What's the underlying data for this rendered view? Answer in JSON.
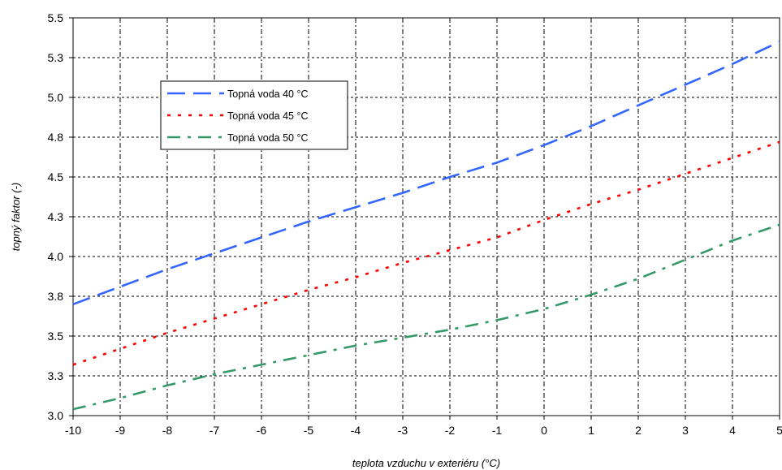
{
  "chart_data": {
    "type": "line",
    "title": "",
    "xlabel": "teplota vzduchu v exteriéru (°C)",
    "ylabel": "topný faktor (-)",
    "xlim": [
      -10,
      5
    ],
    "ylim": [
      3.0,
      5.5
    ],
    "x_ticks": [
      -10,
      -9,
      -8,
      -7,
      -6,
      -5,
      -4,
      -3,
      -2,
      -1,
      0,
      1,
      2,
      3,
      4,
      5
    ],
    "y_ticks": [
      3.0,
      3.25,
      3.5,
      3.75,
      4.0,
      4.25,
      4.5,
      4.75,
      5.0,
      5.25,
      5.5
    ],
    "y_tick_labels": [
      "3.0",
      "3.3",
      "3.5",
      "3.8",
      "4.0",
      "4.3",
      "4.5",
      "4.8",
      "5.0",
      "5.3",
      "5.5"
    ],
    "grid": true,
    "legend_position": "upper-left",
    "series": [
      {
        "name": "Topná voda 40 °C",
        "color": "#3366ff",
        "style": "dashed",
        "x": [
          -10,
          -9,
          -8,
          -7,
          -6,
          -5,
          -4,
          -3,
          -2,
          -1,
          0,
          1,
          2,
          3,
          4,
          5
        ],
        "y": [
          3.7,
          3.81,
          3.92,
          4.02,
          4.12,
          4.22,
          4.31,
          4.4,
          4.5,
          4.59,
          4.7,
          4.82,
          4.95,
          5.08,
          5.21,
          5.35
        ]
      },
      {
        "name": "Topná voda 45 °C",
        "color": "#ff0000",
        "style": "dotted",
        "x": [
          -10,
          -9,
          -8,
          -7,
          -6,
          -5,
          -4,
          -3,
          -2,
          -1,
          0,
          1,
          2,
          3,
          4,
          5
        ],
        "y": [
          3.32,
          3.42,
          3.52,
          3.61,
          3.7,
          3.79,
          3.87,
          3.96,
          4.04,
          4.12,
          4.23,
          4.33,
          4.42,
          4.52,
          4.62,
          4.72
        ]
      },
      {
        "name": "Topná voda 50 °C",
        "color": "#339966",
        "style": "dashdot",
        "x": [
          -10,
          -9,
          -8,
          -7,
          -6,
          -5,
          -4,
          -3,
          -2,
          -1,
          0,
          1,
          2,
          3,
          4,
          5
        ],
        "y": [
          3.04,
          3.11,
          3.19,
          3.26,
          3.32,
          3.38,
          3.44,
          3.49,
          3.54,
          3.6,
          3.67,
          3.76,
          3.86,
          3.98,
          4.1,
          4.2
        ]
      }
    ]
  }
}
